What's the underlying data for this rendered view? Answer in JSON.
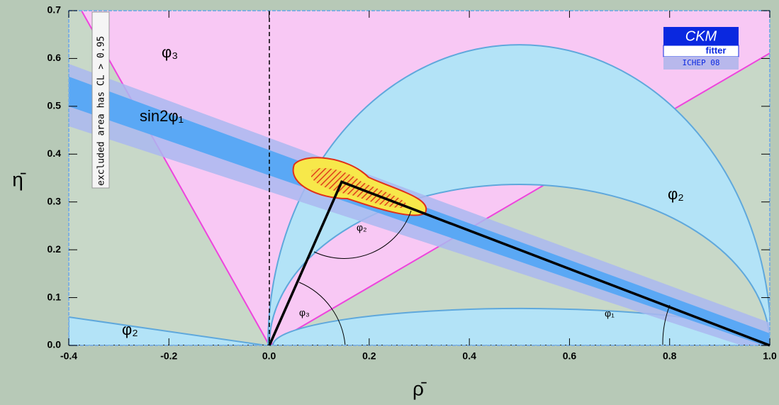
{
  "chart_data": {
    "type": "triangle",
    "x_label": "ρ̄",
    "y_label": "η̄",
    "xlim": [
      -0.4,
      1.0
    ],
    "ylim": [
      0,
      0.7
    ],
    "xticks": [
      -0.4,
      -0.2,
      {
        "value": 0,
        "label": "0.0"
      },
      0.2,
      0.4,
      0.6,
      0.8,
      {
        "value": 1,
        "label": "1.0"
      }
    ],
    "yticks": [
      {
        "value": 0,
        "label": "0.0"
      },
      0.1,
      0.2,
      0.3,
      0.4,
      0.5,
      0.6,
      0.7
    ],
    "x": [
      0.145
    ],
    "values": [
      0.342
    ],
    "color": "#000000",
    "annotations": [
      "φ₃",
      "sin2φ₁",
      "φ₂",
      "φ₂",
      "φ₂",
      "φ₃",
      "φ₁",
      "excluded area has CL > 0.95"
    ],
    "logo": {
      "title": "CKM",
      "subtitle": "fitter",
      "conference": "ICHEP 08"
    }
  }
}
